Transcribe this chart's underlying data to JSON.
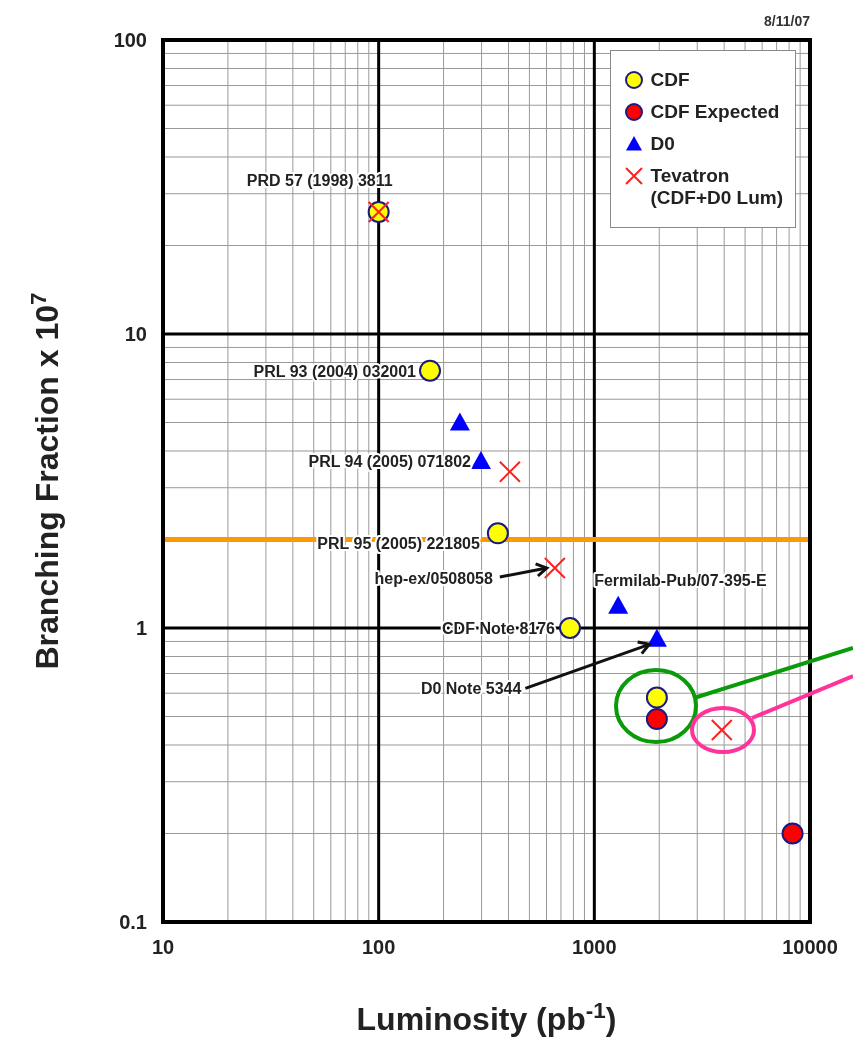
{
  "chart_data": {
    "type": "scatter",
    "xlabel": "Luminosity (pb$^{-1}$)",
    "ylabel": "Branching Fraction x 10$^{7}$",
    "log": "xy",
    "xlim": [
      10,
      10000
    ],
    "ylim": [
      0.1,
      100
    ],
    "xticks": [
      10,
      {
        "value": 20,
        "label": null
      },
      {
        "value": 30,
        "label": null
      },
      {
        "value": 40,
        "label": null
      },
      {
        "value": 50,
        "label": null
      },
      {
        "value": 60,
        "label": null
      },
      {
        "value": 70,
        "label": null
      },
      {
        "value": 80,
        "label": null
      },
      {
        "value": 90,
        "label": null
      },
      100,
      {
        "value": 200,
        "label": null
      },
      {
        "value": 300,
        "label": null
      },
      {
        "value": 400,
        "label": null
      },
      {
        "value": 500,
        "label": null
      },
      {
        "value": 600,
        "label": null
      },
      {
        "value": 700,
        "label": null
      },
      {
        "value": 800,
        "label": null
      },
      {
        "value": 900,
        "label": null
      },
      1000,
      {
        "value": 2000,
        "label": null
      },
      {
        "value": 3000,
        "label": null
      },
      {
        "value": 4000,
        "label": null
      },
      {
        "value": 5000,
        "label": null
      },
      {
        "value": 6000,
        "label": null
      },
      {
        "value": 7000,
        "label": null
      },
      {
        "value": 8000,
        "label": null
      },
      {
        "value": 9000,
        "label": null
      },
      10000
    ],
    "yticks": [
      0.1,
      {
        "value": 0.2,
        "label": null
      },
      {
        "value": 0.3,
        "label": null
      },
      {
        "value": 0.4,
        "label": null
      },
      {
        "value": 0.5,
        "label": null
      },
      {
        "value": 0.6,
        "label": null
      },
      {
        "value": 0.7,
        "label": null
      },
      {
        "value": 0.8,
        "label": null
      },
      {
        "value": 0.9,
        "label": null
      },
      1,
      {
        "value": 2,
        "label": null
      },
      {
        "value": 3,
        "label": null
      },
      {
        "value": 4,
        "label": null
      },
      {
        "value": 5,
        "label": null
      },
      {
        "value": 6,
        "label": null
      },
      {
        "value": 7,
        "label": null
      },
      {
        "value": 8,
        "label": null
      },
      {
        "value": 9,
        "label": null
      },
      10,
      {
        "value": 20,
        "label": null
      },
      {
        "value": 30,
        "label": null
      },
      {
        "value": 40,
        "label": null
      },
      {
        "value": 50,
        "label": null
      },
      {
        "value": 60,
        "label": null
      },
      {
        "value": 70,
        "label": null
      },
      {
        "value": 80,
        "label": null
      },
      {
        "value": 90,
        "label": null
      },
      100
    ],
    "grid": true,
    "legend": "top right",
    "series": [
      {
        "name": "CDF",
        "color": "#ffff00",
        "marker": "circle",
        "x": [
          100,
          173,
          357,
          771,
          1950
        ],
        "values": [
          26,
          7.5,
          2.1,
          1.0,
          0.58
        ]
      },
      {
        "name": "CDF Expected",
        "color": "#ff0000",
        "marker": "circle",
        "x": [
          1950,
          8300
        ],
        "values": [
          0.49,
          0.2
        ]
      },
      {
        "name": "D0",
        "color": "#0000ff",
        "marker": "triangle",
        "x": [
          238,
          298,
          1290,
          1950
        ],
        "values": [
          5.0,
          3.7,
          1.19,
          0.92
        ]
      },
      {
        "name": "Tevatron\n(CDF+D0 Lum)",
        "color": "#ff2020",
        "marker": "cross",
        "x": [
          100,
          406,
          656,
          3900
        ],
        "values": [
          26,
          3.4,
          1.6,
          0.45
        ]
      }
    ],
    "ref_lines": [
      {
        "axis": "y",
        "value": 2,
        "color": "#ff9900"
      }
    ],
    "annotations": [
      "8/11/07",
      {
        "text": "PRD 57 (1998) 3811",
        "x": 100,
        "y": 26
      },
      {
        "text": "PRL 93 (2004) 032001",
        "x": 173,
        "y": 7.5
      },
      {
        "text": "PRL 94 (2005) 071802",
        "x": 298,
        "y": 3.7
      },
      {
        "text": "PRL 95 (2005) 221805",
        "x": 357,
        "y": 2.1
      },
      {
        "text": "hep-ex/0508058",
        "x": 656,
        "y": 1.6
      },
      {
        "text": "CDF Note 8176",
        "x": 771,
        "y": 1.0
      },
      {
        "text": "D0 Note 5344",
        "x": 1800,
        "y": 0.88
      },
      {
        "text": "Fermilab-Pub/07-395-E",
        "x": 1290,
        "y": 1.19
      }
    ]
  }
}
